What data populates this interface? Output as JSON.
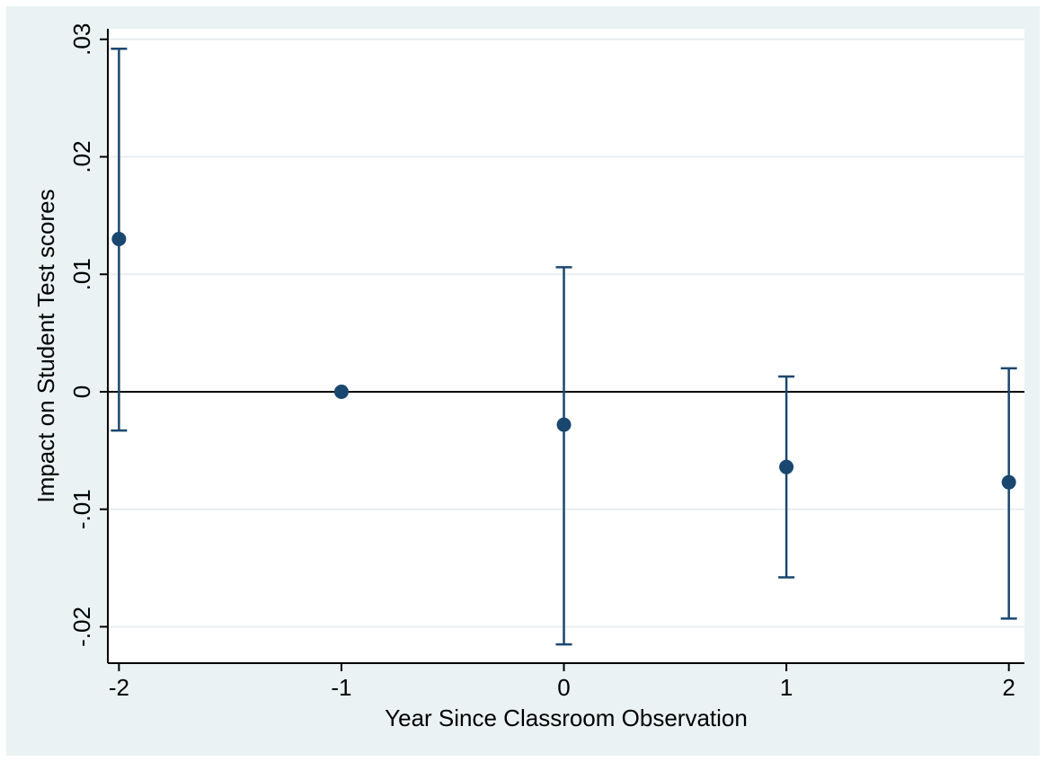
{
  "chart_data": {
    "type": "scatter",
    "title": "",
    "xlabel": "Year Since Classroom Observation",
    "ylabel": "Impact on Student Test scores",
    "x_ticks": [
      {
        "value": -2,
        "label": "-2"
      },
      {
        "value": -1,
        "label": "-1"
      },
      {
        "value": 0,
        "label": "0"
      },
      {
        "value": 1,
        "label": "1"
      },
      {
        "value": 2,
        "label": "2"
      }
    ],
    "y_ticks": [
      {
        "value": -0.02,
        "label": "-.02"
      },
      {
        "value": -0.01,
        "label": "-.01"
      },
      {
        "value": 0,
        "label": "0"
      },
      {
        "value": 0.01,
        "label": ".01"
      },
      {
        "value": 0.02,
        "label": ".02"
      },
      {
        "value": 0.03,
        "label": ".03"
      }
    ],
    "xlim": [
      -2.05,
      2.07
    ],
    "ylim": [
      -0.0231,
      0.0309
    ],
    "grid": true,
    "reference_line": 0,
    "points": [
      {
        "x": -2,
        "y": 0.013,
        "ci_low": -0.0033,
        "ci_high": 0.0292
      },
      {
        "x": -1,
        "y": 0.0,
        "ci_low": 0.0,
        "ci_high": 0.0
      },
      {
        "x": 0,
        "y": -0.0028,
        "ci_low": -0.0215,
        "ci_high": 0.0106
      },
      {
        "x": 1,
        "y": -0.0064,
        "ci_low": -0.0158,
        "ci_high": 0.0013
      },
      {
        "x": 2,
        "y": -0.0077,
        "ci_low": -0.0193,
        "ci_high": 0.002
      }
    ],
    "colors": {
      "background": "#eaf2f3",
      "plot_background": "#ffffff",
      "grid": "#e8eef0",
      "marker": "#1a476f",
      "reference_line": "#000000"
    }
  }
}
